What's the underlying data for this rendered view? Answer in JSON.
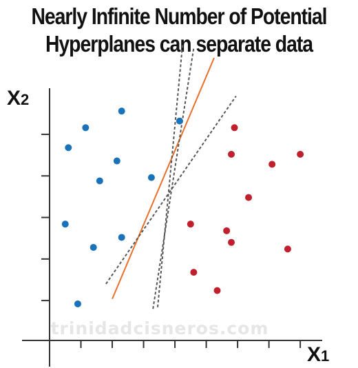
{
  "title": [
    "Nearly Infinite Number of Potential",
    "Hyperplanes can separate data"
  ],
  "axes": {
    "x_label": "X",
    "x_subscript": "1",
    "y_label": "X",
    "y_subscript": "2"
  },
  "watermark": "trinidadcisneros.com",
  "colors": {
    "class_a": "#1a73b8",
    "class_b": "#c0202e",
    "hyperplane_main": "#e8702a",
    "hyperplane_alt": "#555555",
    "axis": "#333333"
  },
  "chart_data": {
    "type": "scatter",
    "x_range": [
      0,
      8.7
    ],
    "y_range": [
      0,
      8.5
    ],
    "x_ticks": [
      1,
      2,
      3,
      4,
      5,
      6,
      7,
      8
    ],
    "y_ticks": [
      1.2,
      2.45,
      3.7,
      4.95,
      6.2
    ],
    "series": [
      {
        "class": "a",
        "points": [
          [
            0.6,
            5.8
          ],
          [
            1.15,
            6.4
          ],
          [
            2.3,
            6.9
          ],
          [
            2.15,
            5.4
          ],
          [
            1.6,
            4.8
          ],
          [
            3.25,
            4.9
          ],
          [
            4.15,
            6.6
          ],
          [
            0.5,
            3.5
          ],
          [
            1.4,
            2.8
          ],
          [
            2.3,
            3.1
          ],
          [
            0.9,
            1.1
          ]
        ]
      },
      {
        "class": "b",
        "points": [
          [
            5.9,
            6.4
          ],
          [
            5.8,
            5.6
          ],
          [
            7.1,
            5.3
          ],
          [
            8.0,
            5.6
          ],
          [
            6.35,
            4.3
          ],
          [
            4.5,
            3.5
          ],
          [
            5.65,
            3.3
          ],
          [
            5.8,
            2.95
          ],
          [
            7.6,
            2.75
          ],
          [
            4.6,
            2.05
          ],
          [
            5.35,
            1.5
          ]
        ]
      }
    ],
    "hyperplanes": [
      {
        "style": "solid",
        "from": [
          2.0,
          1.25
        ],
        "to": [
          5.25,
          8.5
        ]
      },
      {
        "style": "dashed",
        "from": [
          1.8,
          1.7
        ],
        "to": [
          5.95,
          7.35
        ]
      },
      {
        "style": "dashed",
        "from": [
          3.3,
          0.95
        ],
        "to": [
          4.6,
          8.8
        ]
      },
      {
        "style": "dashed",
        "from": [
          3.45,
          1.0
        ],
        "to": [
          4.25,
          8.95
        ]
      }
    ]
  }
}
